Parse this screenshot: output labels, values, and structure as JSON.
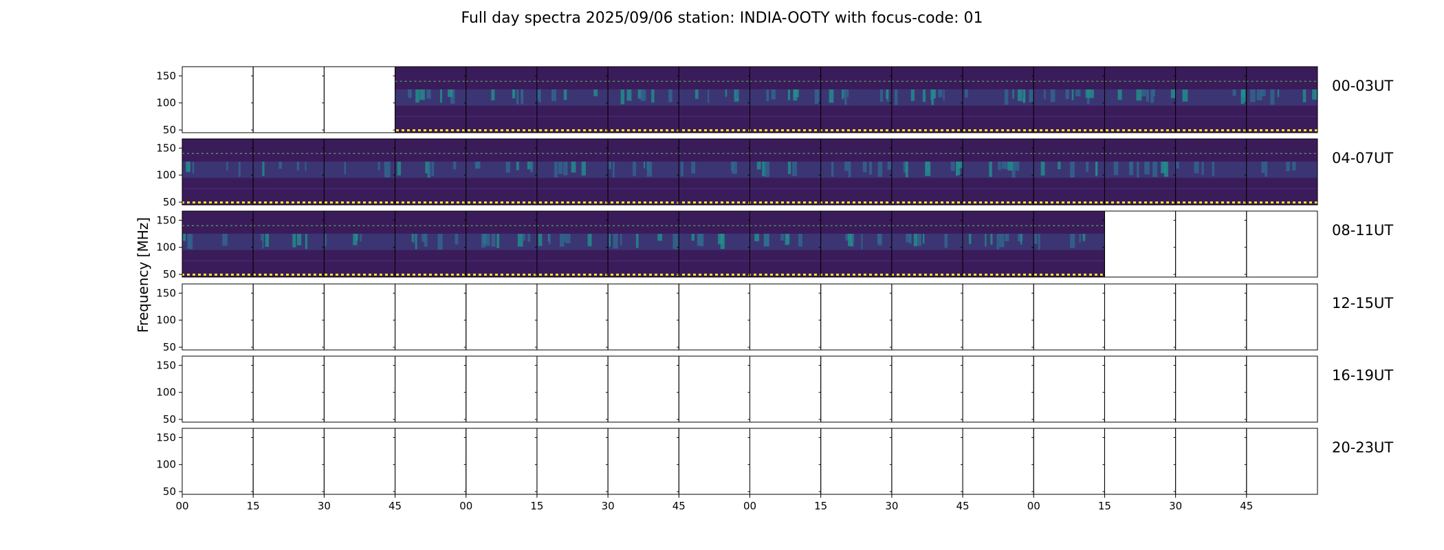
{
  "chart_data": {
    "type": "heatmap",
    "title": "Full day spectra 2025/09/06 station: INDIA-OOTY with focus-code: 01",
    "ylabel": "Frequency [MHz]",
    "ylim": [
      45,
      167
    ],
    "yticks": [
      "50",
      "100",
      "150"
    ],
    "ytick_values": [
      50,
      100,
      150
    ],
    "xticks": [
      "00",
      "15",
      "30",
      "45",
      "00",
      "15",
      "30",
      "45",
      "00",
      "15",
      "30",
      "45",
      "00",
      "15",
      "30",
      "45"
    ],
    "columns_per_row": 16,
    "colormap": [
      "#440154",
      "#3b528b",
      "#21918c",
      "#5ec962",
      "#fde725"
    ],
    "rows": [
      {
        "label": "00-03UT",
        "available": [
          0,
          0,
          0,
          1,
          1,
          1,
          1,
          1,
          1,
          1,
          1,
          1,
          1,
          1,
          1,
          1
        ]
      },
      {
        "label": "04-07UT",
        "available": [
          1,
          1,
          1,
          1,
          1,
          1,
          1,
          1,
          1,
          1,
          1,
          1,
          1,
          1,
          1,
          1
        ]
      },
      {
        "label": "08-11UT",
        "available": [
          1,
          1,
          1,
          1,
          1,
          1,
          1,
          1,
          1,
          1,
          1,
          1,
          1,
          0,
          0,
          0
        ]
      },
      {
        "label": "12-15UT",
        "available": [
          0,
          0,
          0,
          0,
          0,
          0,
          0,
          0,
          0,
          0,
          0,
          0,
          0,
          0,
          0,
          0
        ]
      },
      {
        "label": "16-19UT",
        "available": [
          0,
          0,
          0,
          0,
          0,
          0,
          0,
          0,
          0,
          0,
          0,
          0,
          0,
          0,
          0,
          0
        ]
      },
      {
        "label": "20-23UT",
        "available": [
          0,
          0,
          0,
          0,
          0,
          0,
          0,
          0,
          0,
          0,
          0,
          0,
          0,
          0,
          0,
          0
        ]
      }
    ]
  }
}
